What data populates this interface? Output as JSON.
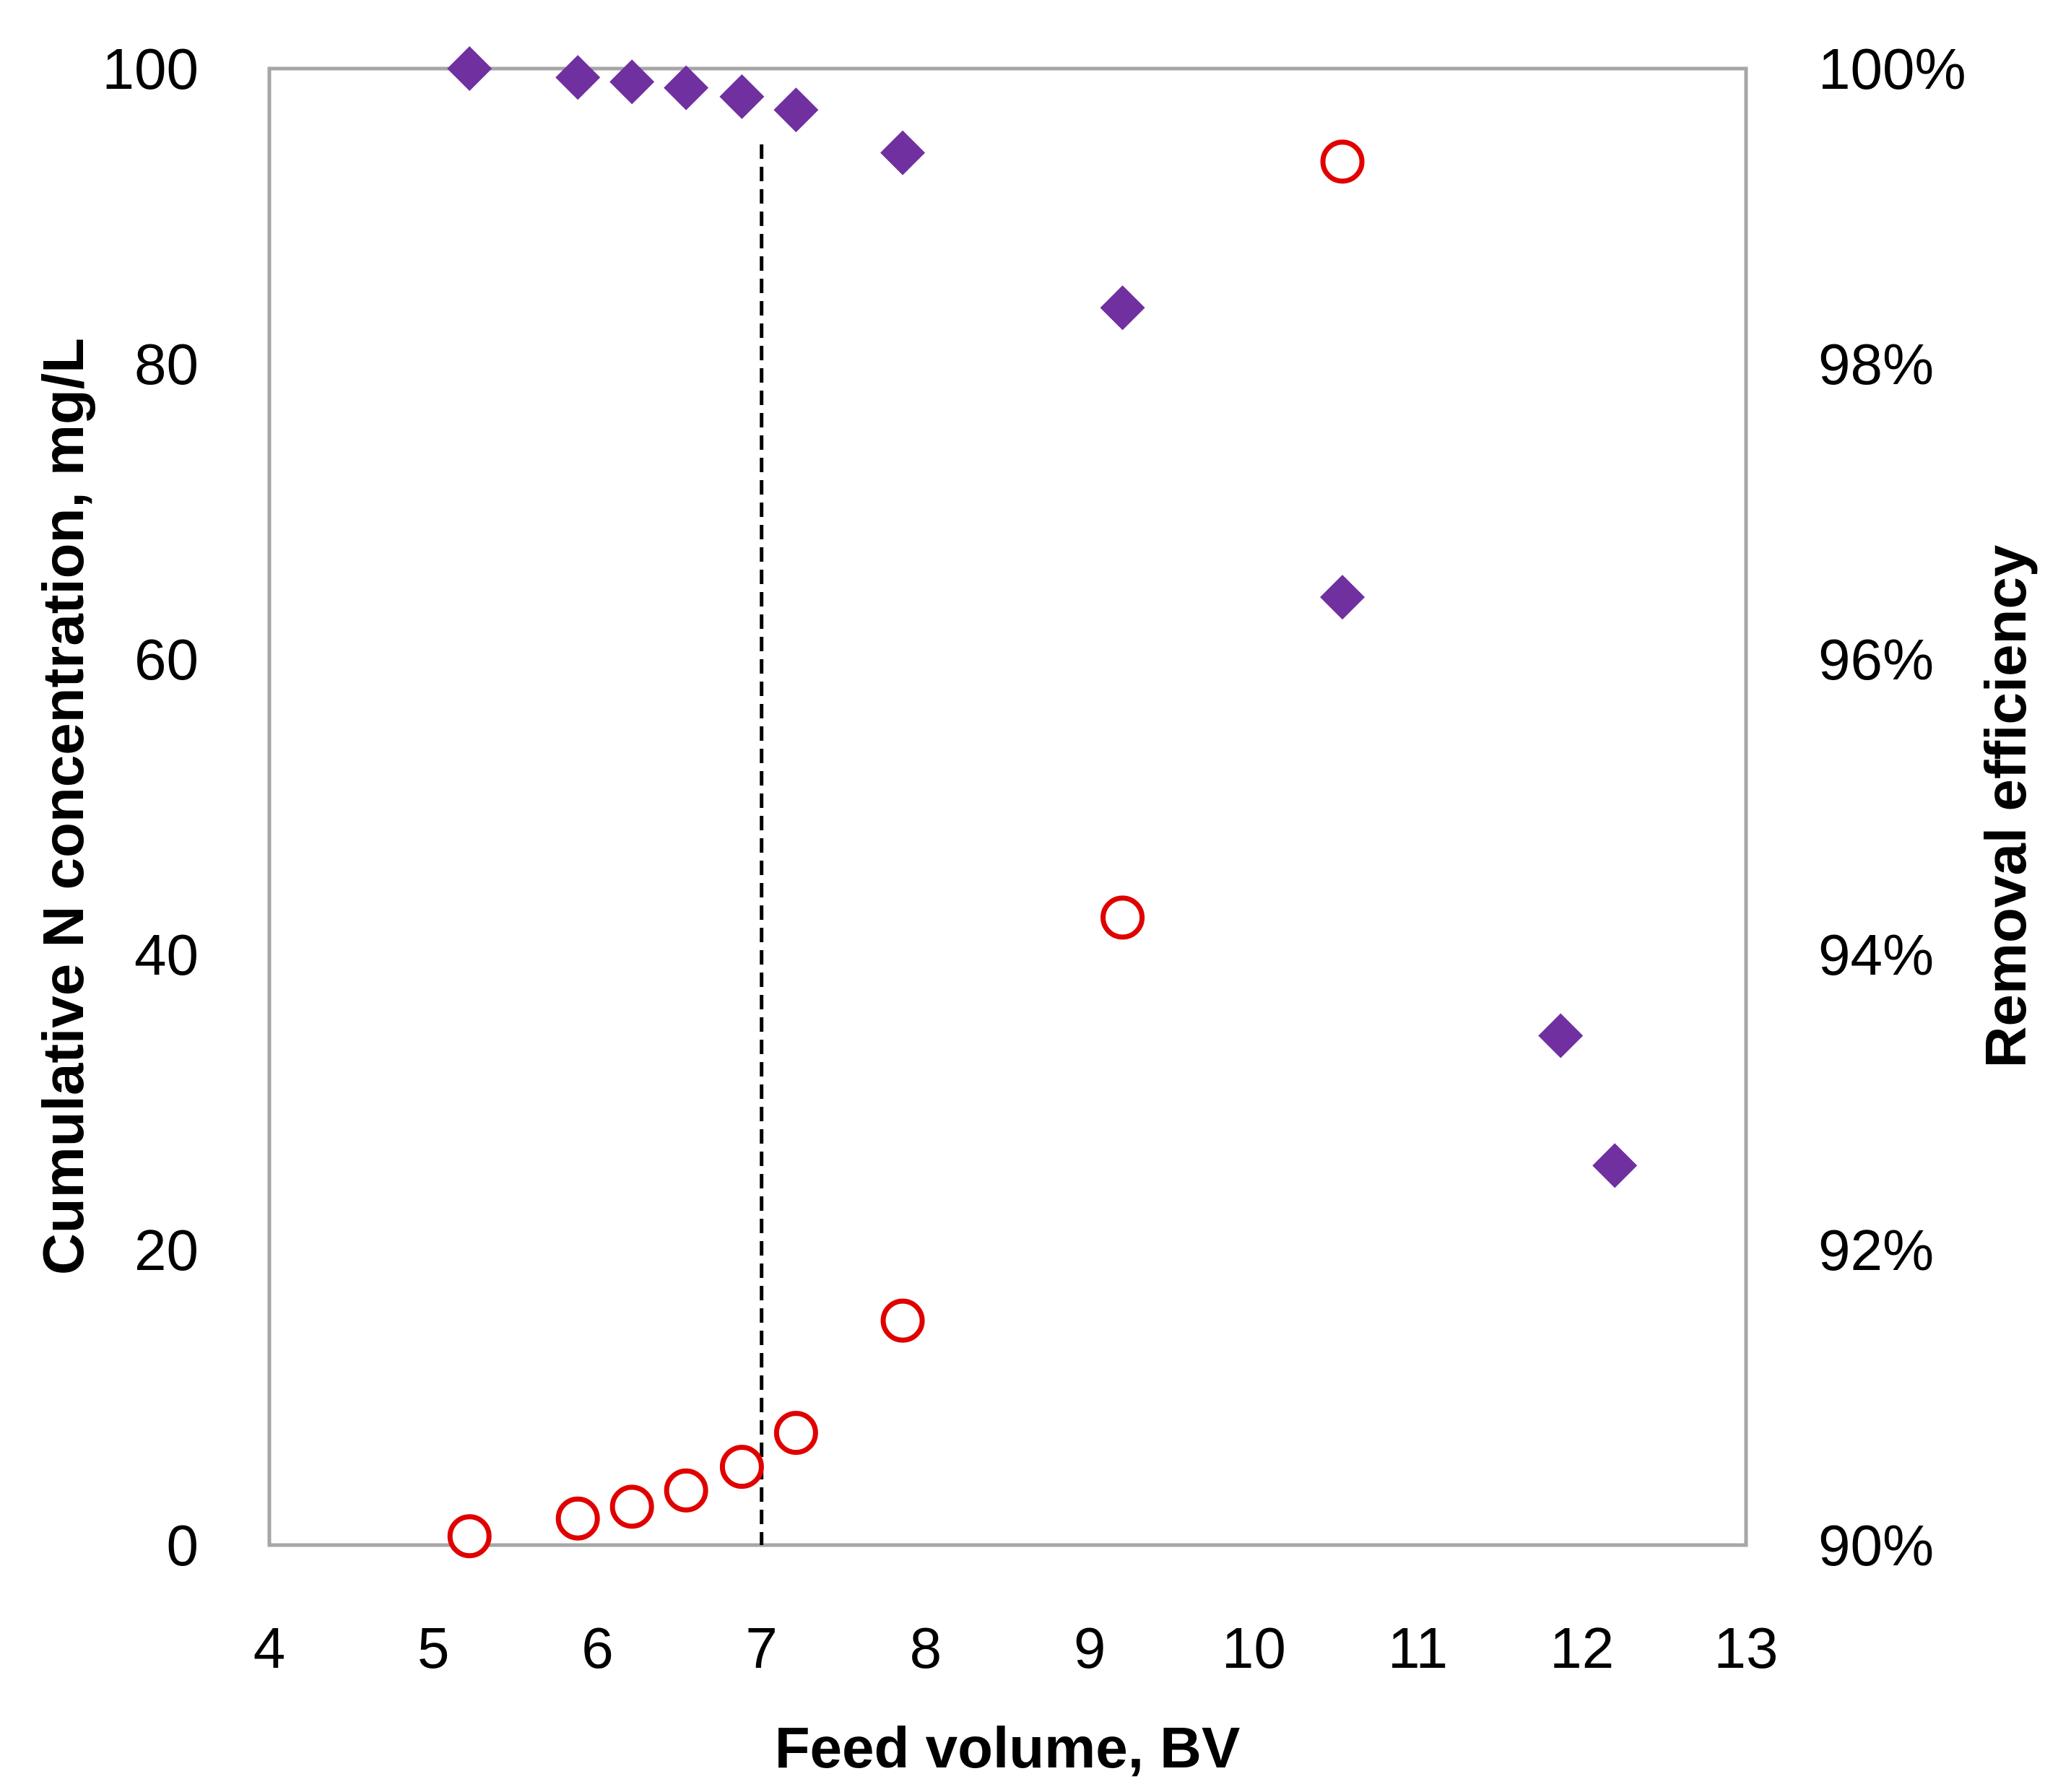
{
  "chart_data": {
    "type": "scatter",
    "title": "",
    "xlabel": "Feed volume, BV",
    "ylabel": "Cumulative N concentration, mg/L",
    "y2label": "Removal efficiency",
    "xlim": [
      4,
      13
    ],
    "ylim": [
      0,
      100
    ],
    "y2lim": [
      90,
      100
    ],
    "x_ticks": [
      "4",
      "5",
      "6",
      "7",
      "8",
      "9",
      "10",
      "11",
      "12",
      "13"
    ],
    "y_ticks": [
      "0",
      "20",
      "40",
      "60",
      "80",
      "100"
    ],
    "y2_ticks": [
      "90%",
      "92%",
      "94%",
      "96%",
      "98%",
      "100%"
    ],
    "grid": false,
    "legend": "none",
    "reference_line": {
      "x": 7,
      "style": "dashed"
    },
    "series": [
      {
        "axis": "left",
        "marker": "open-circle",
        "color": "#e00000",
        "points": [
          {
            "x": 5.22,
            "y": 0.6
          },
          {
            "x": 5.88,
            "y": 1.8
          },
          {
            "x": 6.21,
            "y": 2.6
          },
          {
            "x": 6.54,
            "y": 3.7
          },
          {
            "x": 6.88,
            "y": 5.3
          },
          {
            "x": 7.21,
            "y": 7.6
          },
          {
            "x": 7.86,
            "y": 15.2
          },
          {
            "x": 9.2,
            "y": 42.5
          },
          {
            "x": 10.54,
            "y": 93.7
          }
        ]
      },
      {
        "axis": "right",
        "marker": "filled-diamond",
        "color": "#7030a0",
        "points": [
          {
            "x": 5.22,
            "y": 100.0
          },
          {
            "x": 5.88,
            "y": 99.94
          },
          {
            "x": 6.21,
            "y": 99.91
          },
          {
            "x": 6.54,
            "y": 99.87
          },
          {
            "x": 6.88,
            "y": 99.81
          },
          {
            "x": 7.21,
            "y": 99.72
          },
          {
            "x": 7.86,
            "y": 99.43
          },
          {
            "x": 9.2,
            "y": 98.38
          },
          {
            "x": 10.54,
            "y": 96.42
          },
          {
            "x": 11.87,
            "y": 93.45
          },
          {
            "x": 12.2,
            "y": 92.57
          }
        ]
      }
    ]
  }
}
